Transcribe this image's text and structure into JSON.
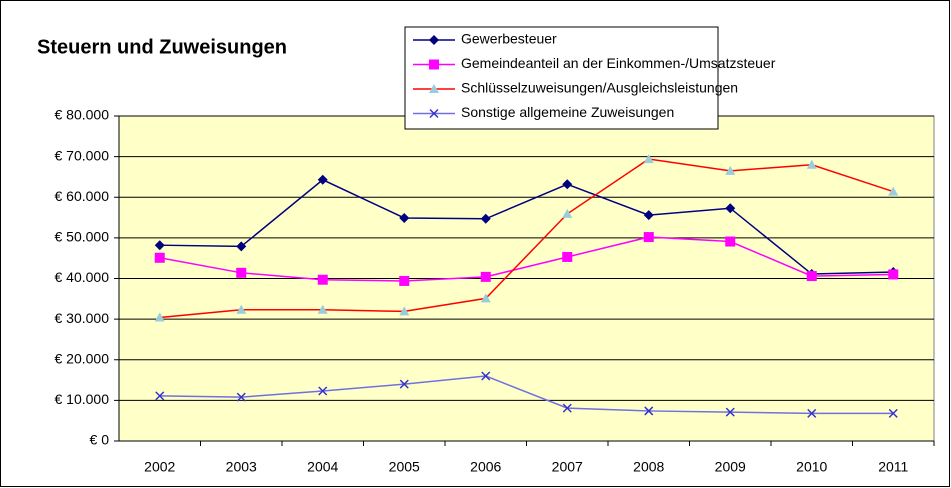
{
  "chart_data": {
    "type": "line",
    "title": "Steuern und Zuweisungen",
    "categories": [
      "2002",
      "2003",
      "2004",
      "2005",
      "2006",
      "2007",
      "2008",
      "2009",
      "2010",
      "2011"
    ],
    "series": [
      {
        "name": "Gewerbesteuer",
        "color": "#000080",
        "marker_color": "#000080",
        "marker": "diamond",
        "values": [
          48200,
          47900,
          64300,
          54900,
          54700,
          63200,
          55600,
          57300,
          41100,
          41600
        ]
      },
      {
        "name": "Gemeindeanteil an der Einkommen-/Umsatzsteuer",
        "color": "#ff00ff",
        "marker_color": "#ff00ff",
        "marker": "square",
        "values": [
          45100,
          41400,
          39700,
          39400,
          40400,
          45300,
          50200,
          49100,
          40600,
          41000
        ]
      },
      {
        "name": "Schlüsselzuweisungen/Ausgleichsleistungen",
        "color": "#ff0000",
        "marker_color": "#99ccdd",
        "marker": "triangle",
        "values": [
          30400,
          32300,
          32300,
          31900,
          35100,
          55900,
          69400,
          66500,
          68000,
          61400
        ]
      },
      {
        "name": "Sonstige allgemeine Zuweisungen",
        "color": "#7070e0",
        "marker_color": "#3333cc",
        "marker": "x",
        "values": [
          11100,
          10800,
          12300,
          14000,
          16000,
          8100,
          7400,
          7100,
          6800,
          6800
        ]
      }
    ],
    "ylim": [
      0,
      80000
    ],
    "yticks": [
      {
        "value": 0,
        "label": "€ 0"
      },
      {
        "value": 10000,
        "label": "€ 10.000"
      },
      {
        "value": 20000,
        "label": "€ 20.000"
      },
      {
        "value": 30000,
        "label": "€ 30.000"
      },
      {
        "value": 40000,
        "label": "€ 40.000"
      },
      {
        "value": 50000,
        "label": "€ 50.000"
      },
      {
        "value": 60000,
        "label": "€ 60.000"
      },
      {
        "value": 70000,
        "label": "€ 70.000"
      },
      {
        "value": 80000,
        "label": "€ 80.000"
      }
    ],
    "grid": true,
    "plot_background": "#ffffc8",
    "legend": "top-right"
  }
}
